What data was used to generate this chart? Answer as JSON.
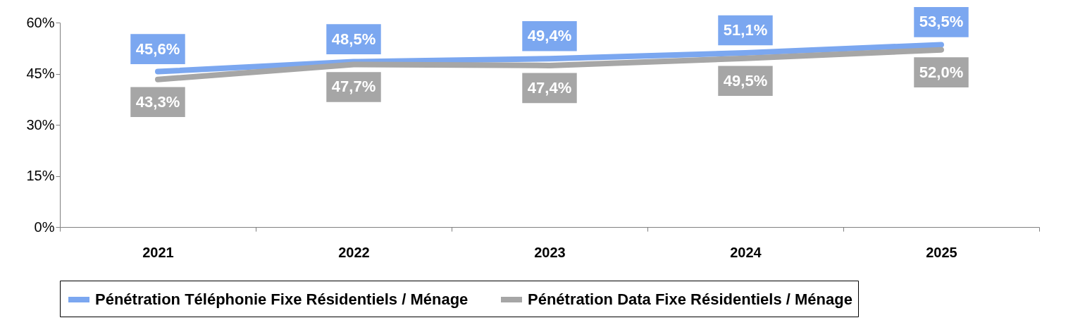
{
  "chart_data": {
    "type": "line",
    "categories": [
      "2021",
      "2022",
      "2023",
      "2024",
      "2025"
    ],
    "series": [
      {
        "name": "Pénétration Téléphonie Fixe Résidentiels / Ménage",
        "color": "#7ba7f0",
        "values": [
          45.6,
          48.5,
          49.4,
          51.1,
          53.5
        ],
        "value_labels": [
          "45,6%",
          "48,5%",
          "49,4%",
          "51,1%",
          "53,5%"
        ]
      },
      {
        "name": "Pénétration Data Fixe Résidentiels / Ménage",
        "color": "#a6a6a6",
        "values": [
          43.3,
          47.7,
          47.4,
          49.5,
          52.0
        ],
        "value_labels": [
          "43,3%",
          "47,7%",
          "47,4%",
          "49,5%",
          "52,0%"
        ]
      }
    ],
    "ylim": [
      0,
      60
    ],
    "yticks": [
      {
        "value": 0,
        "label": "0%"
      },
      {
        "value": 15,
        "label": "15%"
      },
      {
        "value": 30,
        "label": "30%"
      },
      {
        "value": 45,
        "label": "45%"
      },
      {
        "value": 60,
        "label": "60%"
      }
    ],
    "grid": false,
    "legend": "bottom"
  }
}
